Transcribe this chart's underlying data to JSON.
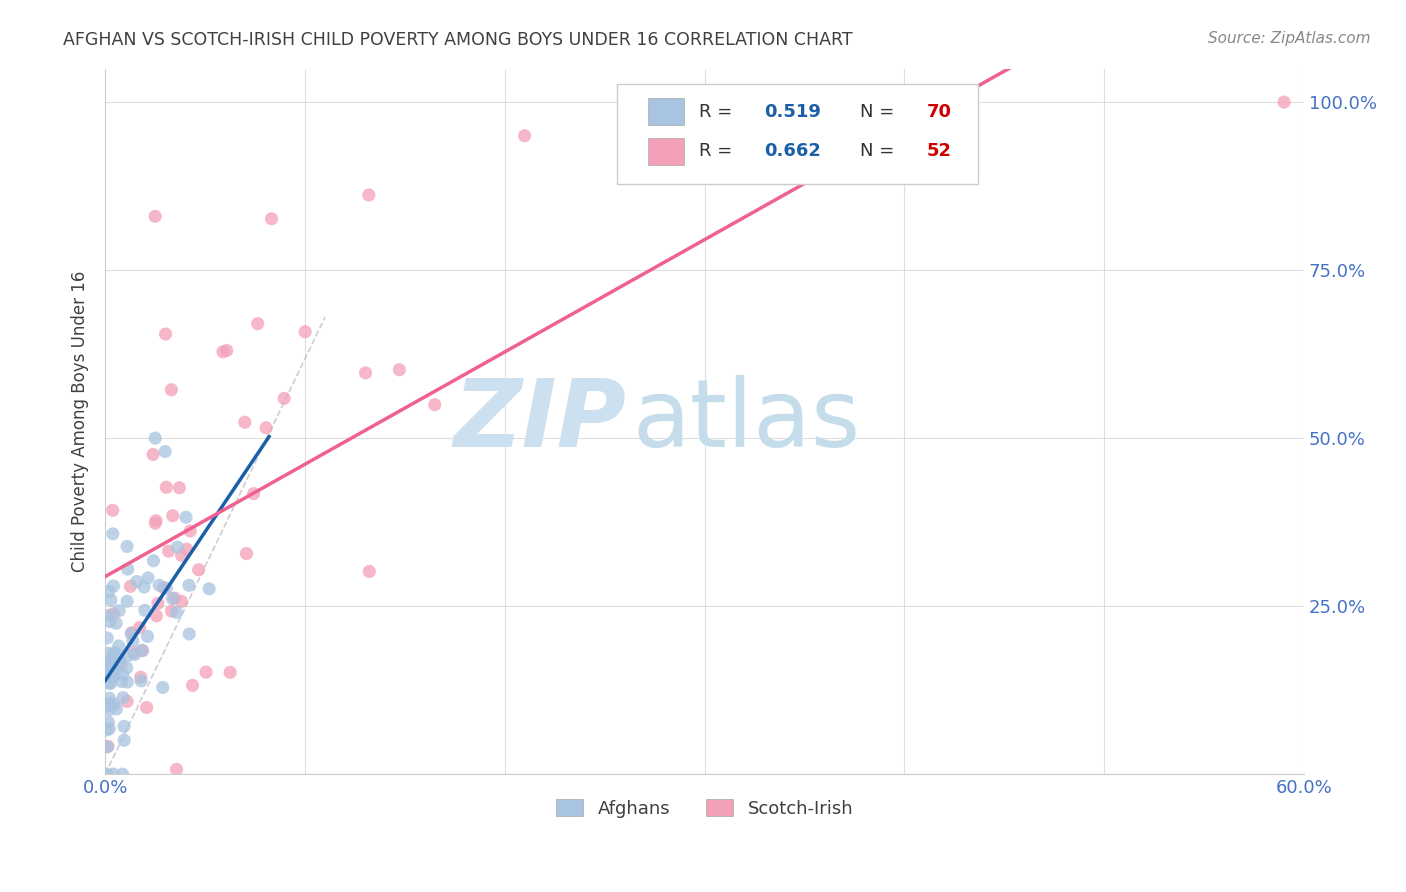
{
  "title": "AFGHAN VS SCOTCH-IRISH CHILD POVERTY AMONG BOYS UNDER 16 CORRELATION CHART",
  "source": "Source: ZipAtlas.com",
  "ylabel": "Child Poverty Among Boys Under 16",
  "afghan_R": "0.519",
  "afghan_N": "70",
  "scotch_irish_R": "0.662",
  "scotch_irish_N": "52",
  "afghan_color": "#a8c4e0",
  "scotch_irish_color": "#f4a0b8",
  "afghan_line_color": "#1a5fa8",
  "scotch_irish_line_color": "#f06090",
  "background_color": "#ffffff",
  "grid_color": "#d8d8d8",
  "axis_label_color": "#4472c4",
  "title_color": "#404040",
  "source_color": "#888888",
  "legend_R_color": "#1a5fa8",
  "legend_N_color": "#cc0000",
  "watermark_zip_color": "#cce0f0",
  "watermark_atlas_color": "#c5dcea"
}
